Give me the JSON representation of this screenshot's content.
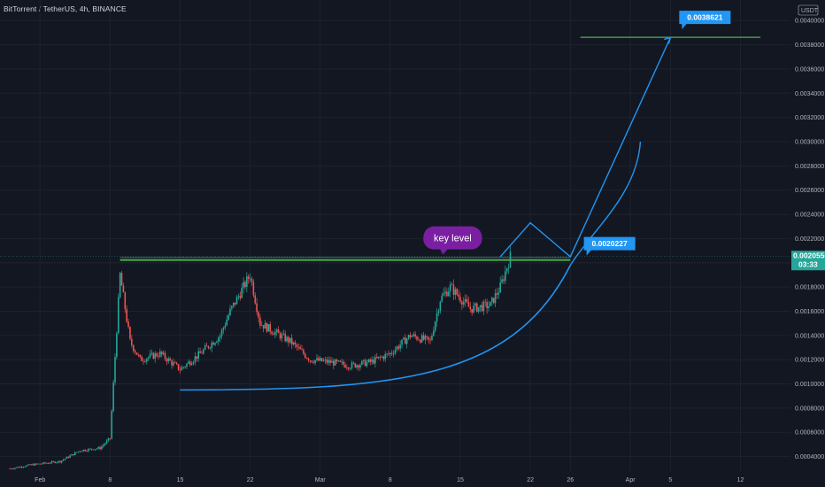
{
  "header": {
    "title": "BitTorrent / TetherUS, 4h, BINANCE"
  },
  "axis": {
    "currency": "USDT"
  },
  "colors": {
    "background": "#131722",
    "up": "#26a69a",
    "down": "#ef5350",
    "trend": "#2196f3",
    "level": "#4caf50",
    "key_label": "#7b1fa2"
  },
  "chart_data": {
    "type": "candlestick",
    "title": "BitTorrent / TetherUS, 4h, BINANCE",
    "y_axis": {
      "ticks": [
        "0.0040000",
        "0.0038000",
        "0.0036000",
        "0.0034000",
        "0.0032000",
        "0.0030000",
        "0.0028000",
        "0.0026000",
        "0.0024000",
        "0.0022000",
        "0.0020000",
        "0.0018000",
        "0.0016000",
        "0.0014000",
        "0.0012000",
        "0.0010000",
        "0.0008000",
        "0.0006000",
        "0.0004000"
      ],
      "range": [
        0.00028,
        0.00417
      ],
      "position": "right"
    },
    "x_axis": {
      "ticks": [
        "Feb",
        "8",
        "15",
        "22",
        "Mar",
        "8",
        "15",
        "22",
        "26",
        "Apr",
        "5",
        "12"
      ]
    },
    "price_path": [
      [
        "2021-01-29",
        0.0003
      ],
      [
        "2021-01-31",
        0.00033
      ],
      [
        "2021-02-03",
        0.00036
      ],
      [
        "2021-02-05",
        0.00045
      ],
      [
        "2021-02-07",
        0.00047
      ],
      [
        "2021-02-08",
        0.00055
      ],
      [
        "2021-02-09",
        0.0019
      ],
      [
        "2021-02-10",
        0.00135
      ],
      [
        "2021-02-11",
        0.0012
      ],
      [
        "2021-02-13",
        0.00125
      ],
      [
        "2021-02-15",
        0.00112
      ],
      [
        "2021-02-17",
        0.00125
      ],
      [
        "2021-02-19",
        0.0014
      ],
      [
        "2021-02-20",
        0.0016
      ],
      [
        "2021-02-21",
        0.00175
      ],
      [
        "2021-02-22",
        0.0019
      ],
      [
        "2021-02-23",
        0.0015
      ],
      [
        "2021-02-24",
        0.00145
      ],
      [
        "2021-02-26",
        0.00135
      ],
      [
        "2021-02-28",
        0.0012
      ],
      [
        "2021-03-02",
        0.00118
      ],
      [
        "2021-03-04",
        0.00115
      ],
      [
        "2021-03-06",
        0.00118
      ],
      [
        "2021-03-08",
        0.00125
      ],
      [
        "2021-03-10",
        0.0014
      ],
      [
        "2021-03-12",
        0.00135
      ],
      [
        "2021-03-13",
        0.0017
      ],
      [
        "2021-03-14",
        0.0018
      ],
      [
        "2021-03-16",
        0.00162
      ],
      [
        "2021-03-18",
        0.00165
      ],
      [
        "2021-03-19",
        0.0018
      ],
      [
        "2021-03-20",
        0.00205
      ]
    ],
    "annotations": {
      "key_level": {
        "label": "key level",
        "price": 0.0020227
      },
      "level_label": "0.0020227",
      "target_label": "0.0038621",
      "target_price": 0.0038621,
      "current_price_label": "0.0020550",
      "current_price": 0.002055,
      "countdown_label": "03:33"
    }
  }
}
